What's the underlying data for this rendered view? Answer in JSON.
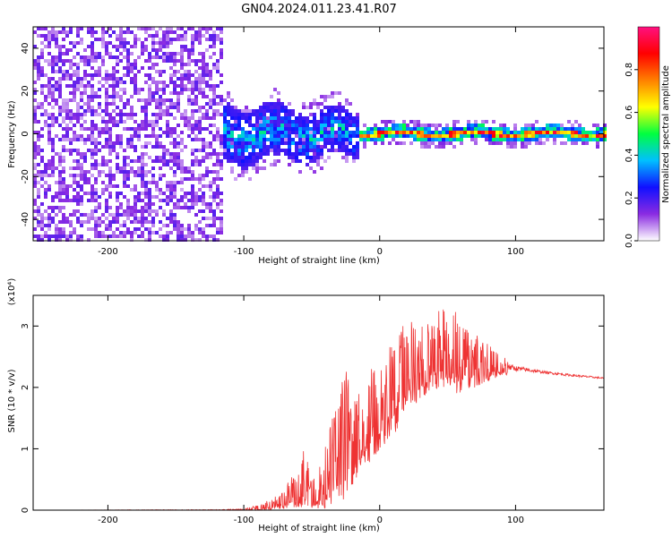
{
  "title": "GN04.2024.011.23.41.R07",
  "chart_data": [
    {
      "type": "heatmap",
      "xlabel": "Height of straight line (km)",
      "ylabel": "Frequency (Hz)",
      "xlim": [
        -255,
        165
      ],
      "ylim": [
        -50,
        50
      ],
      "x_ticks": [
        -200,
        -100,
        0,
        100
      ],
      "y_ticks": [
        -40,
        -20,
        0,
        20,
        40
      ],
      "colorbar": {
        "label": "Normalized spectral amplitude",
        "range": [
          0,
          1
        ],
        "ticks": [
          0.0,
          0.2,
          0.4,
          0.6,
          0.8
        ],
        "colors": [
          "#ffffff",
          "#8a2be2",
          "#1010ff",
          "#00c0ff",
          "#00ff40",
          "#ffff00",
          "#ff8000",
          "#ff0000",
          "#ff1080"
        ]
      },
      "regions": [
        {
          "x_range": [
            -255,
            -115
          ],
          "freq_range": [
            -50,
            50
          ],
          "amplitude": 0.1,
          "pattern": "scattered noise"
        },
        {
          "x_range": [
            -115,
            -15
          ],
          "freq_center": 0,
          "freq_halfwidth": 14,
          "amplitude": 0.25,
          "pattern": "broad band"
        },
        {
          "x_range": [
            -15,
            165
          ],
          "freq_center": 0,
          "freq_halfwidth": 3,
          "amplitude": 0.7,
          "pattern": "narrow line"
        }
      ]
    },
    {
      "type": "line",
      "xlabel": "Height of straight line (km)",
      "ylabel": "SNR (10 * v/v)",
      "ylabel_unit": "(x10⁴)",
      "xlim": [
        -255,
        165
      ],
      "ylim": [
        0,
        3.5
      ],
      "x_ticks": [
        -200,
        -100,
        0,
        100
      ],
      "y_ticks": [
        0,
        1,
        2,
        3
      ],
      "color": "#ee3333",
      "envelope": {
        "x": [
          -255,
          -120,
          -100,
          -90,
          -80,
          -70,
          -60,
          -55,
          -50,
          -45,
          -40,
          -35,
          -30,
          -25,
          -20,
          -10,
          0,
          10,
          20,
          30,
          40,
          50,
          60,
          70,
          80,
          90,
          100,
          120,
          140,
          165
        ],
        "low": [
          0,
          0,
          0,
          0,
          0,
          0.02,
          0.05,
          0.05,
          0.02,
          0.02,
          0.03,
          0.05,
          0.1,
          0.2,
          0.4,
          0.7,
          0.9,
          1.2,
          1.6,
          1.8,
          2.0,
          1.9,
          1.9,
          2.0,
          2.1,
          2.2,
          2.2,
          2.2,
          2.15,
          2.12
        ],
        "high": [
          0,
          0.01,
          0.02,
          0.08,
          0.18,
          0.35,
          0.75,
          1.05,
          0.45,
          0.7,
          1.1,
          1.5,
          1.85,
          2.6,
          1.7,
          2.2,
          2.5,
          2.8,
          3.1,
          3.0,
          3.2,
          3.45,
          3.1,
          2.9,
          2.7,
          2.5,
          2.42,
          2.3,
          2.25,
          2.18
        ]
      }
    }
  ]
}
